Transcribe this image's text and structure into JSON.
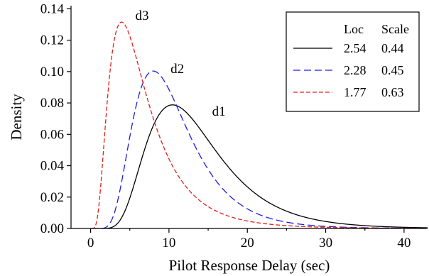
{
  "chart_data": {
    "type": "line",
    "xlabel": "Pilot Response Delay  (sec)",
    "ylabel": "Density",
    "xlim": [
      -2.5,
      43
    ],
    "ylim": [
      0,
      0.142
    ],
    "xticks": [
      "0",
      "10",
      "20",
      "30",
      "40"
    ],
    "yticks": [
      "0.00",
      "0.02",
      "0.04",
      "0.06",
      "0.08",
      "0.10",
      "0.12",
      "0.14"
    ],
    "legend": {
      "position": "top-right",
      "header": [
        "Loc",
        "Scale"
      ],
      "rows": [
        {
          "series": "d1",
          "loc": "2.54",
          "scale": "0.44"
        },
        {
          "series": "d2",
          "loc": "2.28",
          "scale": "0.45"
        },
        {
          "series": "d3",
          "loc": "1.77",
          "scale": "0.63"
        }
      ]
    },
    "series": [
      {
        "name": "d1",
        "loc": 2.54,
        "scale": 0.44,
        "color": "#000000",
        "dash": "none",
        "label_at": [
          15.5,
          0.072
        ]
      },
      {
        "name": "d2",
        "loc": 2.28,
        "scale": 0.45,
        "color": "#1c1ce0",
        "dash": "10,5",
        "label_at": [
          10.2,
          0.099
        ]
      },
      {
        "name": "d3",
        "loc": 1.77,
        "scale": 0.63,
        "color": "#e0201c",
        "dash": "6,3",
        "label_at": [
          5.7,
          0.133
        ]
      }
    ],
    "grid": false
  }
}
